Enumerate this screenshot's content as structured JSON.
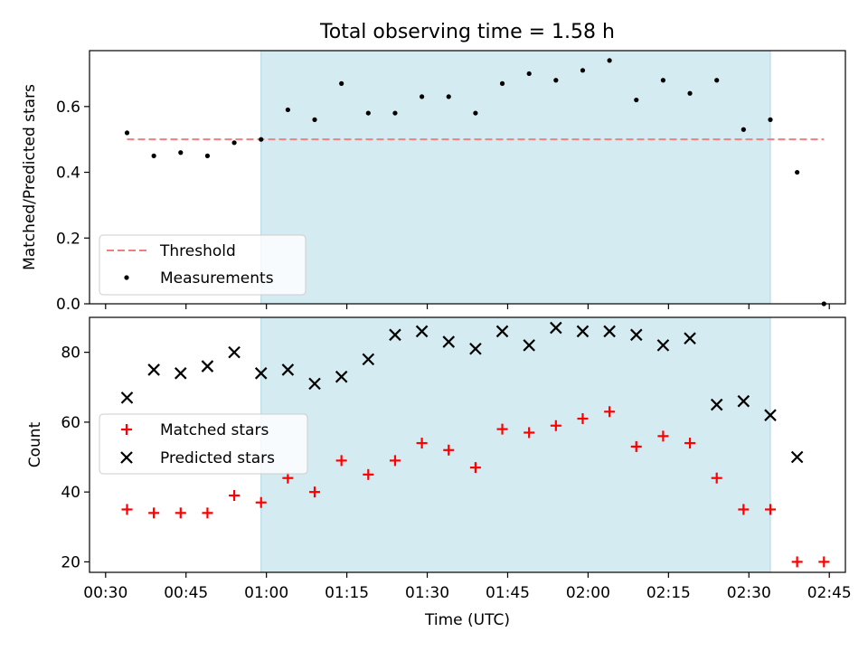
{
  "title": "Total observing time = 1.58 h",
  "colors": {
    "threshold": "#f08080",
    "measurement": "#000000",
    "matched": "#ff0000",
    "predicted": "#000000",
    "span": "#add8e6"
  },
  "chart_data": [
    {
      "type": "scatter",
      "panel": "top",
      "ylabel": "Matched/Predicted stars",
      "ylim": [
        0,
        0.77
      ],
      "yticks": [
        0.0,
        0.2,
        0.4,
        0.6
      ],
      "ytick_labels": [
        "0.0",
        "0.2",
        "0.4",
        "0.6"
      ],
      "xlim": [
        "00:27",
        "02:48"
      ],
      "highlight_span": [
        "00:59",
        "02:34"
      ],
      "threshold": {
        "name": "Threshold",
        "value": 0.5,
        "x": [
          "00:34",
          "02:44"
        ]
      },
      "legend": {
        "placement": "lower-left",
        "entries": [
          "Threshold",
          "Measurements"
        ]
      },
      "series": [
        {
          "name": "Measurements",
          "marker": "dot",
          "x": [
            "00:34",
            "00:39",
            "00:44",
            "00:49",
            "00:54",
            "00:59",
            "01:04",
            "01:09",
            "01:14",
            "01:19",
            "01:24",
            "01:29",
            "01:34",
            "01:39",
            "01:44",
            "01:49",
            "01:54",
            "01:59",
            "02:04",
            "02:09",
            "02:14",
            "02:19",
            "02:24",
            "02:29",
            "02:34",
            "02:39",
            "02:44"
          ],
          "y": [
            0.52,
            0.45,
            0.46,
            0.45,
            0.49,
            0.5,
            0.59,
            0.56,
            0.67,
            0.58,
            0.58,
            0.63,
            0.63,
            0.58,
            0.67,
            0.7,
            0.68,
            0.71,
            0.74,
            0.62,
            0.68,
            0.64,
            0.68,
            0.53,
            0.56,
            0.4,
            0.0
          ]
        }
      ]
    },
    {
      "type": "scatter",
      "panel": "bottom",
      "ylabel": "Count",
      "xlabel": "Time (UTC)",
      "ylim": [
        17,
        90
      ],
      "yticks": [
        20,
        40,
        60,
        80
      ],
      "ytick_labels": [
        "20",
        "40",
        "60",
        "80"
      ],
      "xlim": [
        "00:27",
        "02:48"
      ],
      "xticks": [
        "00:30",
        "00:45",
        "01:00",
        "01:15",
        "01:30",
        "01:45",
        "02:00",
        "02:15",
        "02:30",
        "02:45"
      ],
      "highlight_span": [
        "00:59",
        "02:34"
      ],
      "legend": {
        "placement": "center-left",
        "entries": [
          "Matched stars",
          "Predicted stars"
        ]
      },
      "series": [
        {
          "name": "Matched stars",
          "marker": "plus",
          "x": [
            "00:34",
            "00:39",
            "00:44",
            "00:49",
            "00:54",
            "00:59",
            "01:04",
            "01:09",
            "01:14",
            "01:19",
            "01:24",
            "01:29",
            "01:34",
            "01:39",
            "01:44",
            "01:49",
            "01:54",
            "01:59",
            "02:04",
            "02:09",
            "02:14",
            "02:19",
            "02:24",
            "02:29",
            "02:34",
            "02:39",
            "02:44"
          ],
          "y": [
            35,
            34,
            34,
            34,
            39,
            37,
            44,
            40,
            49,
            45,
            49,
            54,
            52,
            47,
            58,
            57,
            59,
            61,
            63,
            53,
            56,
            54,
            44,
            35,
            35,
            20,
            20
          ]
        },
        {
          "name": "Predicted stars",
          "marker": "cross",
          "x": [
            "00:34",
            "00:39",
            "00:44",
            "00:49",
            "00:54",
            "00:59",
            "01:04",
            "01:09",
            "01:14",
            "01:19",
            "01:24",
            "01:29",
            "01:34",
            "01:39",
            "01:44",
            "01:49",
            "01:54",
            "01:59",
            "02:04",
            "02:09",
            "02:14",
            "02:19",
            "02:24",
            "02:29",
            "02:34",
            "02:39"
          ],
          "y": [
            67,
            75,
            74,
            76,
            80,
            74,
            75,
            71,
            73,
            78,
            85,
            86,
            83,
            81,
            86,
            82,
            87,
            86,
            86,
            85,
            82,
            84,
            65,
            66,
            62,
            50
          ]
        }
      ]
    }
  ]
}
